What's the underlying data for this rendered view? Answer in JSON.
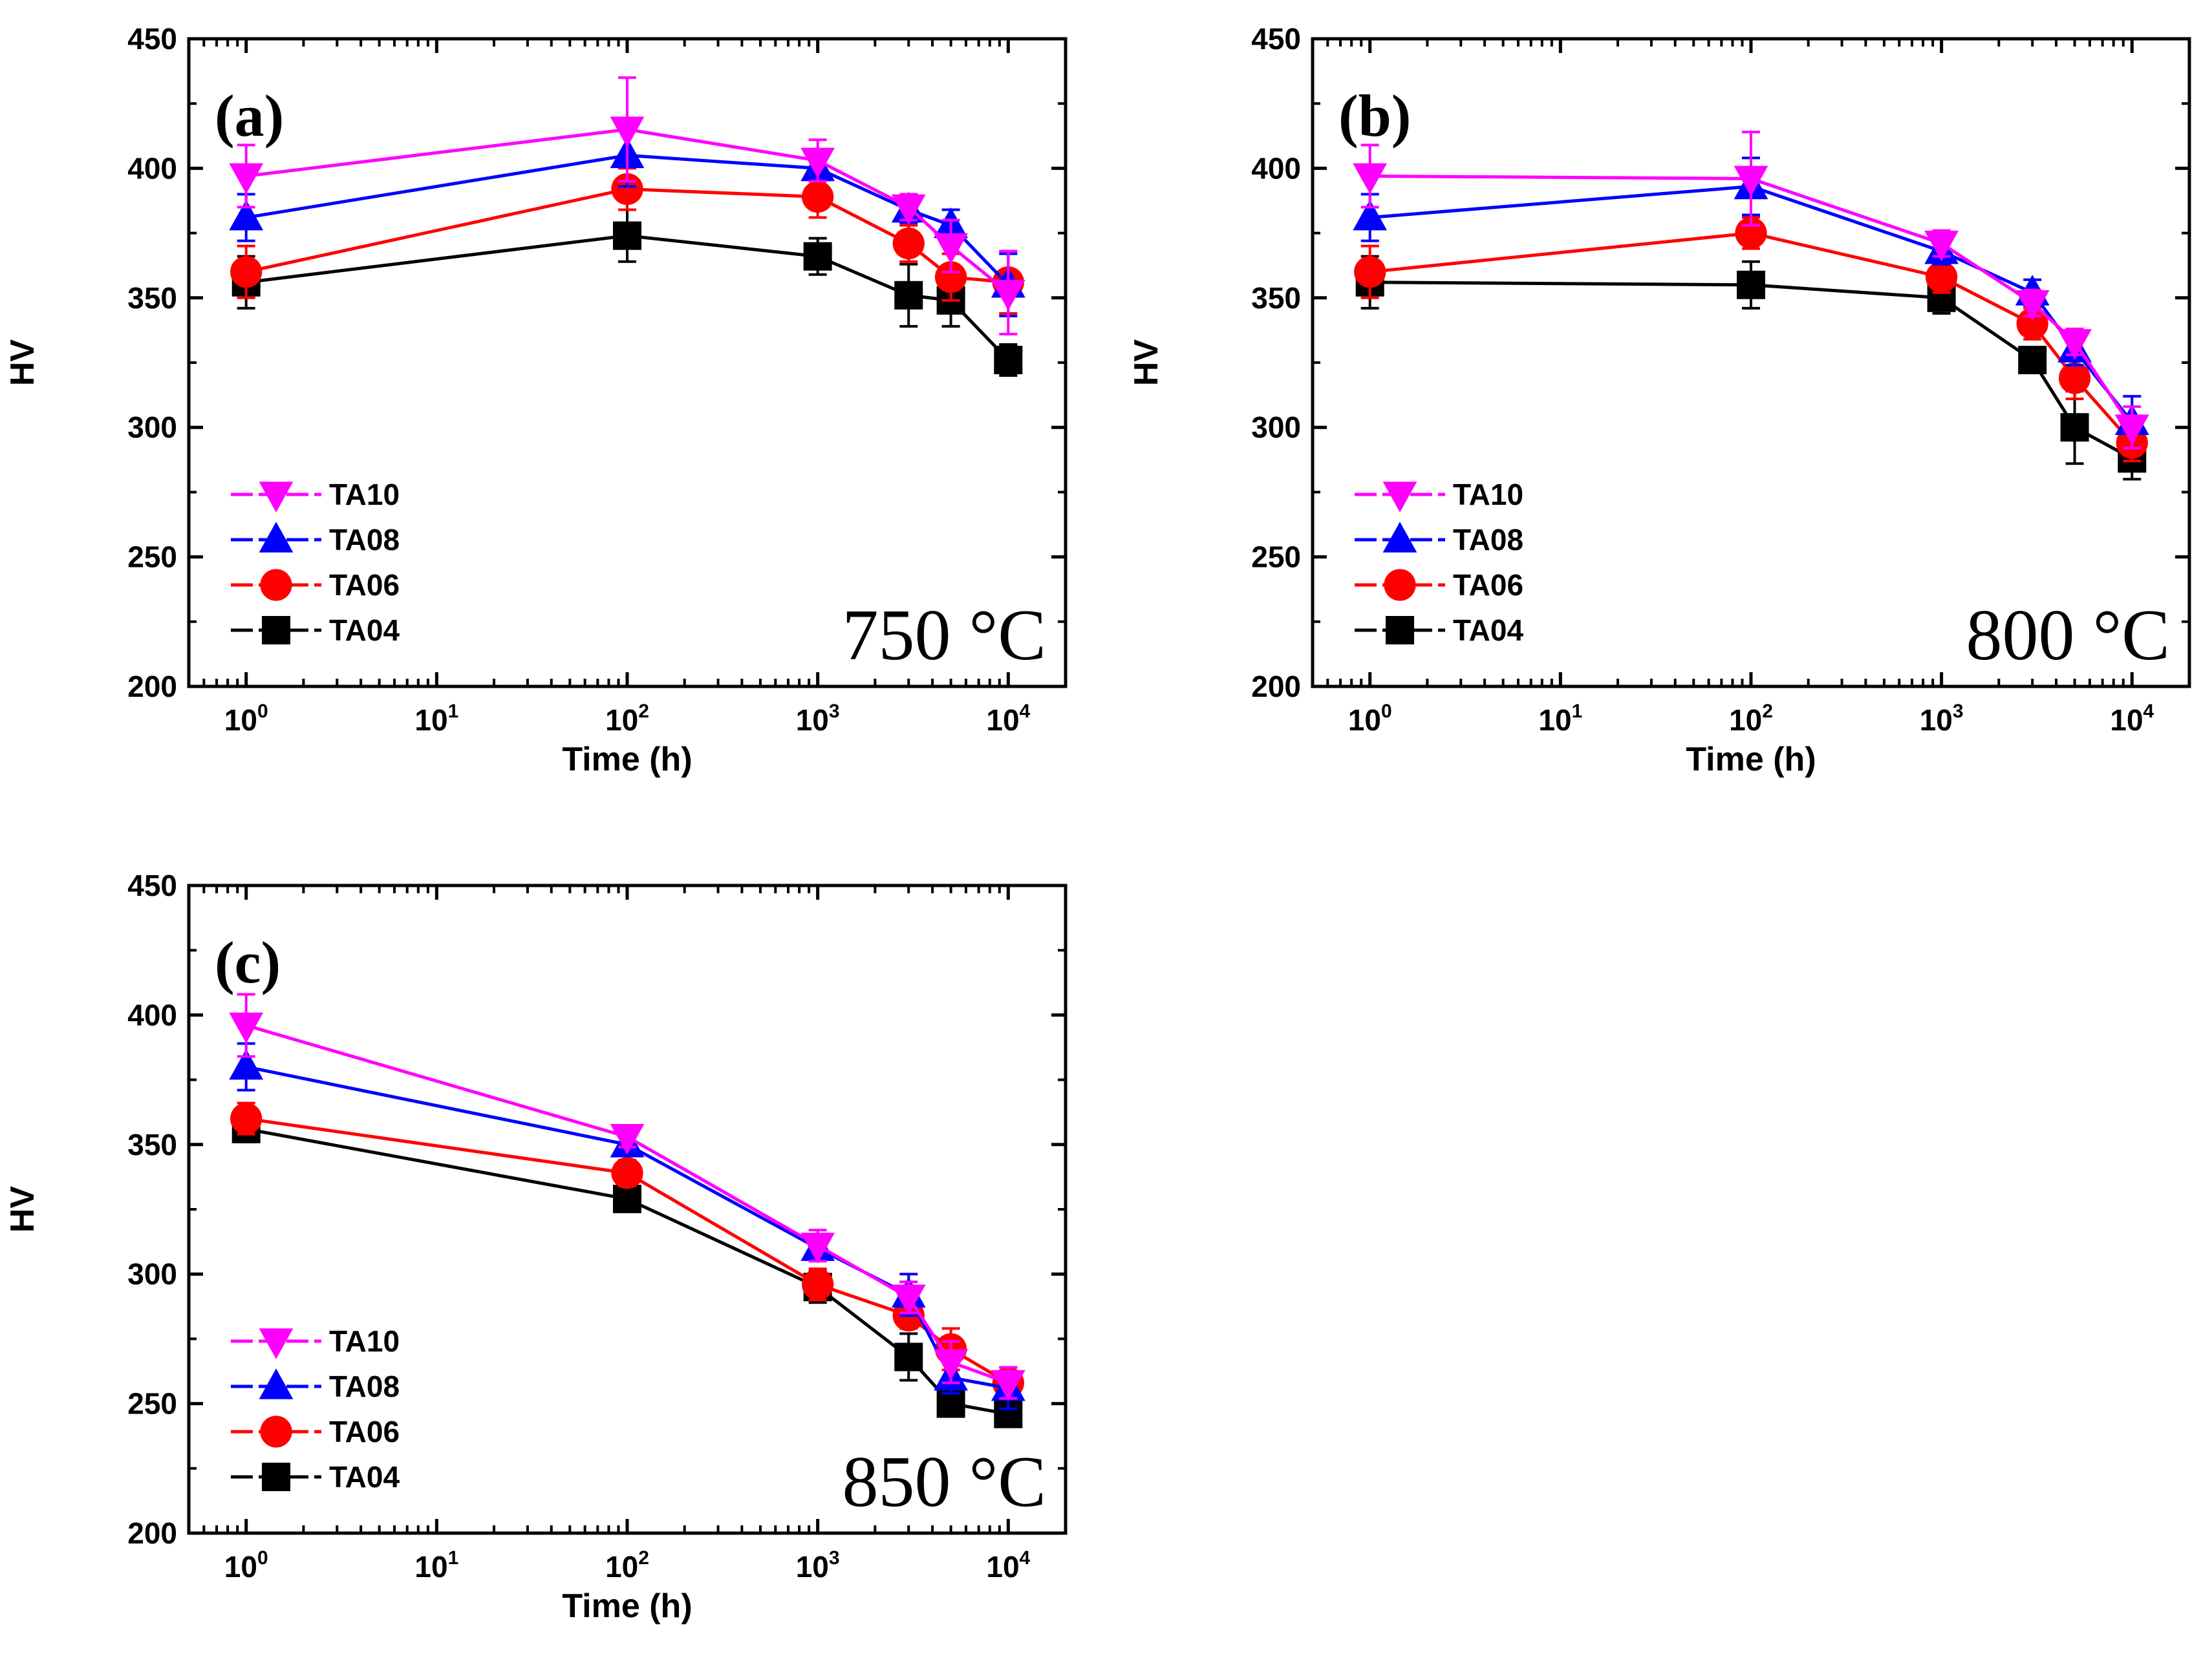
{
  "colors": {
    "TA10": "#ff00ff",
    "TA08": "#0000ff",
    "TA06": "#ff0000",
    "TA04": "#000000"
  },
  "chart_data": [
    {
      "type": "line",
      "panel_label": "(a)",
      "temperature_label": "750 °C",
      "xlabel": "Time (h)",
      "ylabel": "HV",
      "xscale": "log",
      "xlim": [
        0.5,
        20000
      ],
      "ylim": [
        200,
        450
      ],
      "yticks": [
        "200",
        "250",
        "300",
        "350",
        "400",
        "450"
      ],
      "xticks": [
        {
          "base": "10",
          "exp": "0",
          "value": 1
        },
        {
          "base": "10",
          "exp": "1",
          "value": 10
        },
        {
          "base": "10",
          "exp": "2",
          "value": 100
        },
        {
          "base": "10",
          "exp": "3",
          "value": 1000
        },
        {
          "base": "10",
          "exp": "4",
          "value": 10000
        }
      ],
      "legend_position": "bottom-left",
      "x": [
        1,
        100,
        1000,
        3000,
        5000,
        10000
      ],
      "series": [
        {
          "name": "TA10",
          "marker": "triangle-down",
          "values": [
            397,
            415,
            403,
            385,
            370,
            352
          ],
          "errors": [
            12,
            20,
            8,
            5,
            10,
            16
          ]
        },
        {
          "name": "TA08",
          "marker": "triangle-up",
          "values": [
            381,
            405,
            400,
            384,
            378,
            355
          ],
          "errors": [
            9,
            12,
            5,
            5,
            6,
            12
          ]
        },
        {
          "name": "TA06",
          "marker": "circle",
          "values": [
            360,
            392,
            389,
            371,
            358,
            356
          ],
          "errors": [
            10,
            8,
            8,
            7,
            9,
            12
          ]
        },
        {
          "name": "TA04",
          "marker": "square",
          "values": [
            356,
            374,
            366,
            351,
            349,
            326
          ],
          "errors": [
            10,
            10,
            7,
            12,
            10,
            6
          ]
        }
      ]
    },
    {
      "type": "line",
      "panel_label": "(b)",
      "temperature_label": "800 °C",
      "xlabel": "Time (h)",
      "ylabel": "HV",
      "xscale": "log",
      "xlim": [
        0.5,
        20000
      ],
      "ylim": [
        200,
        450
      ],
      "yticks": [
        "200",
        "250",
        "300",
        "350",
        "400",
        "450"
      ],
      "xticks": [
        {
          "base": "10",
          "exp": "0",
          "value": 1
        },
        {
          "base": "10",
          "exp": "1",
          "value": 10
        },
        {
          "base": "10",
          "exp": "2",
          "value": 100
        },
        {
          "base": "10",
          "exp": "3",
          "value": 1000
        },
        {
          "base": "10",
          "exp": "4",
          "value": 10000
        }
      ],
      "legend_position": "bottom-left",
      "x": [
        1,
        100,
        1000,
        3000,
        5000,
        10000
      ],
      "series": [
        {
          "name": "TA10",
          "marker": "triangle-down",
          "values": [
            397,
            396,
            371,
            348,
            333,
            300
          ],
          "errors": [
            12,
            18,
            5,
            5,
            5,
            8
          ]
        },
        {
          "name": "TA08",
          "marker": "triangle-up",
          "values": [
            381,
            393,
            368,
            352,
            330,
            302
          ],
          "errors": [
            9,
            11,
            5,
            5,
            6,
            10
          ]
        },
        {
          "name": "TA06",
          "marker": "circle",
          "values": [
            360,
            375,
            358,
            340,
            319,
            294
          ],
          "errors": [
            10,
            6,
            6,
            6,
            8,
            7
          ]
        },
        {
          "name": "TA04",
          "marker": "square",
          "values": [
            356,
            355,
            350,
            326,
            300,
            288
          ],
          "errors": [
            10,
            9,
            6,
            5,
            14,
            8
          ]
        }
      ]
    },
    {
      "type": "line",
      "panel_label": "(c)",
      "temperature_label": "850 °C",
      "xlabel": "Time (h)",
      "ylabel": "HV",
      "xscale": "log",
      "xlim": [
        0.5,
        20000
      ],
      "ylim": [
        200,
        450
      ],
      "yticks": [
        "200",
        "250",
        "300",
        "350",
        "400",
        "450"
      ],
      "xticks": [
        {
          "base": "10",
          "exp": "0",
          "value": 1
        },
        {
          "base": "10",
          "exp": "1",
          "value": 10
        },
        {
          "base": "10",
          "exp": "2",
          "value": 100
        },
        {
          "base": "10",
          "exp": "3",
          "value": 1000
        },
        {
          "base": "10",
          "exp": "4",
          "value": 10000
        }
      ],
      "legend_position": "bottom-left",
      "x": [
        1,
        100,
        1000,
        3000,
        5000,
        10000
      ],
      "series": [
        {
          "name": "TA10",
          "marker": "triangle-down",
          "values": [
            396,
            353,
            311,
            291,
            266,
            258
          ],
          "errors": [
            12,
            4,
            6,
            6,
            8,
            6
          ]
        },
        {
          "name": "TA08",
          "marker": "triangle-up",
          "values": [
            380,
            350,
            310,
            292,
            260,
            256
          ],
          "errors": [
            9,
            4,
            5,
            8,
            6,
            8
          ]
        },
        {
          "name": "TA06",
          "marker": "circle",
          "values": [
            360,
            339,
            296,
            284,
            271,
            258
          ],
          "errors": [
            6,
            5,
            6,
            5,
            8,
            6
          ]
        },
        {
          "name": "TA04",
          "marker": "square",
          "values": [
            356,
            329,
            295,
            268,
            250,
            246
          ],
          "errors": [
            5,
            4,
            6,
            9,
            4,
            4
          ]
        }
      ]
    }
  ]
}
